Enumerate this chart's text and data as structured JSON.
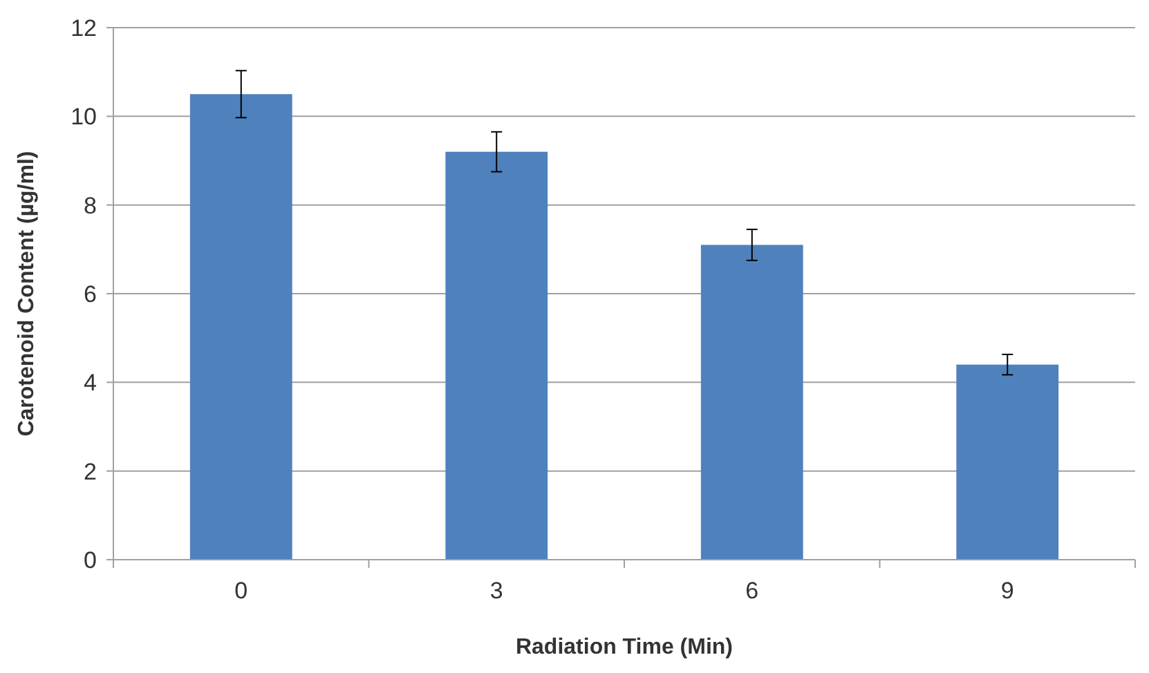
{
  "chart_data": {
    "type": "bar",
    "xlabel": "Radiation Time (Min)",
    "ylabel": "Carotenoid Content (µg/ml)",
    "categories": [
      "0",
      "3",
      "6",
      "9"
    ],
    "values": [
      10.5,
      9.2,
      7.1,
      4.4
    ],
    "errors": [
      0.53,
      0.45,
      0.35,
      0.23
    ],
    "color": "#4f81bd",
    "ylim": [
      0,
      12
    ],
    "yticks": [
      0,
      2,
      4,
      6,
      8,
      10,
      12
    ],
    "grid": "y"
  }
}
